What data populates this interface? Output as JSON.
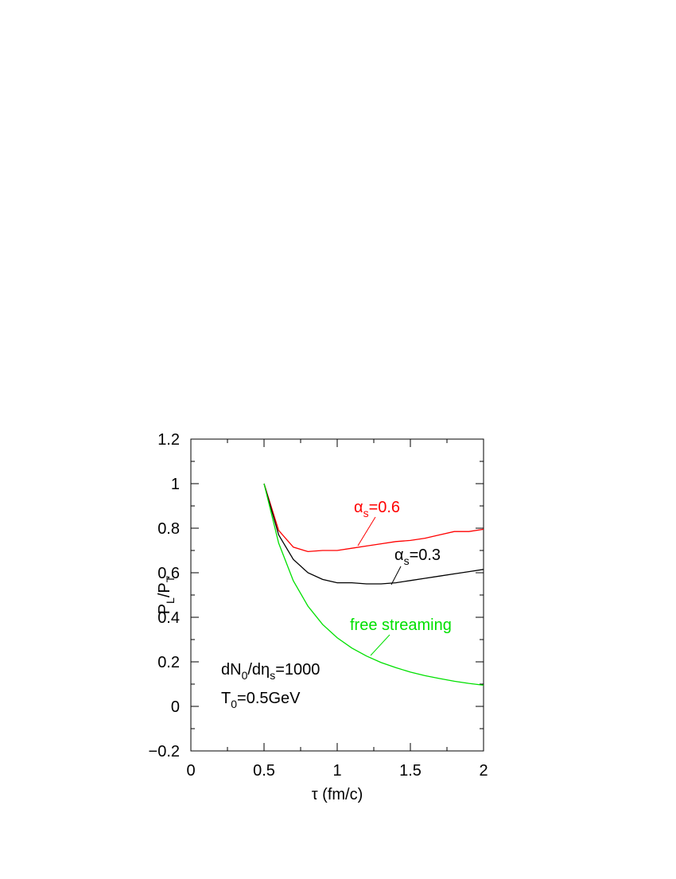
{
  "chart_data": {
    "type": "line",
    "x_label": [
      {
        "text": "τ (fm/c)"
      }
    ],
    "y_label": [
      {
        "text": "P"
      },
      {
        "text": "L",
        "sub": true
      },
      {
        "text": "/P"
      },
      {
        "text": "T",
        "sub": true
      }
    ],
    "xlim": [
      0,
      2
    ],
    "xticks": [
      0,
      0.5,
      1,
      1.5,
      2
    ],
    "ylim": [
      -0.2,
      1.2
    ],
    "yticks": [
      {
        "value": -0.2,
        "label": "−0.2"
      },
      0,
      0.2,
      0.4,
      0.6,
      0.8,
      1,
      1.2
    ],
    "x": [
      0.5,
      0.6,
      0.7,
      0.8,
      0.9,
      1.0,
      1.1,
      1.2,
      1.3,
      1.4,
      1.5,
      1.6,
      1.7,
      1.8,
      1.9,
      2.0
    ],
    "series": [
      {
        "label": [
          {
            "text": "α"
          },
          {
            "text": "s",
            "sub": true
          },
          {
            "text": "=0.6"
          }
        ],
        "color": "#ff0000",
        "values": [
          1.0,
          0.79,
          0.715,
          0.695,
          0.7,
          0.7,
          0.71,
          0.72,
          0.73,
          0.74,
          0.745,
          0.755,
          0.77,
          0.785,
          0.785,
          0.795
        ]
      },
      {
        "label": [
          {
            "text": "α"
          },
          {
            "text": "s",
            "sub": true
          },
          {
            "text": "=0.3"
          }
        ],
        "color": "#000000",
        "values": [
          1.0,
          0.77,
          0.66,
          0.6,
          0.57,
          0.555,
          0.555,
          0.55,
          0.55,
          0.555,
          0.565,
          0.575,
          0.585,
          0.595,
          0.605,
          0.615
        ]
      },
      {
        "label": [
          {
            "text": "free streaming"
          }
        ],
        "color": "#00e000",
        "values": [
          1.0,
          0.733,
          0.564,
          0.45,
          0.368,
          0.308,
          0.262,
          0.226,
          0.197,
          0.174,
          0.154,
          0.138,
          0.125,
          0.113,
          0.103,
          0.095
        ]
      }
    ],
    "annotations": [
      [
        {
          "text": "dN"
        },
        {
          "text": "0",
          "sub": true
        },
        {
          "text": "/dη"
        },
        {
          "text": "s",
          "sub": true
        },
        {
          "text": "=1000"
        }
      ],
      [
        {
          "text": "T"
        },
        {
          "text": "0",
          "sub": true
        },
        {
          "text": "=0.5GeV"
        }
      ]
    ]
  }
}
